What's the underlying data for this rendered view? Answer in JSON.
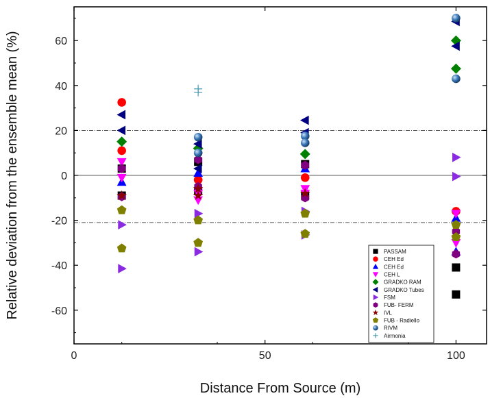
{
  "chart_data": {
    "type": "scatter",
    "title": "",
    "xlabel": "Distance From Source (m)",
    "ylabel": "Relative deviation from the ensemble mean (%)",
    "xlim": [
      0,
      108
    ],
    "ylim": [
      -75,
      75
    ],
    "xticks": [
      0,
      50,
      100
    ],
    "yticks": [
      -60,
      -40,
      -20,
      0,
      20,
      40,
      60
    ],
    "reference_lines": [
      {
        "y": 20,
        "style": "dash-dot"
      },
      {
        "y": 0,
        "style": "solid"
      },
      {
        "y": -21,
        "style": "dash-dot"
      }
    ],
    "legend_position": "bottom-right",
    "grid": false,
    "series": [
      {
        "name": "PASSAM",
        "marker": "square",
        "color": "#000000",
        "points": [
          [
            12.5,
            3
          ],
          [
            12.5,
            -9
          ],
          [
            32.5,
            6
          ],
          [
            32.5,
            -7
          ],
          [
            60.5,
            5
          ],
          [
            60.5,
            -9
          ],
          [
            100,
            -41
          ],
          [
            100,
            -53
          ]
        ]
      },
      {
        "name": "CEH Ed",
        "marker": "circle",
        "color": "#ff0000",
        "points": [
          [
            12.5,
            32.5
          ],
          [
            12.5,
            11
          ],
          [
            32.5,
            -2
          ],
          [
            60.5,
            -1
          ],
          [
            100,
            -16
          ]
        ]
      },
      {
        "name": "CEH Ed",
        "marker": "triangle-up",
        "color": "#0000ff",
        "points": [
          [
            12.5,
            -3
          ],
          [
            32.5,
            1
          ],
          [
            60.5,
            3
          ],
          [
            100,
            -19
          ],
          [
            100,
            -34
          ]
        ]
      },
      {
        "name": "CEH L",
        "marker": "triangle-down",
        "color": "#ff00ff",
        "points": [
          [
            12.5,
            6
          ],
          [
            12.5,
            -1
          ],
          [
            32.5,
            -8
          ],
          [
            32.5,
            -11
          ],
          [
            60.5,
            -6
          ],
          [
            60.5,
            -8
          ],
          [
            100,
            -17
          ],
          [
            100,
            -30
          ]
        ]
      },
      {
        "name": "GRADKO RAM",
        "marker": "diamond",
        "color": "#008000",
        "points": [
          [
            12.5,
            15
          ],
          [
            32.5,
            12
          ],
          [
            60.5,
            9.5
          ],
          [
            100,
            60
          ],
          [
            100,
            47.5
          ]
        ]
      },
      {
        "name": "GRADKO Tubes",
        "marker": "triangle-left",
        "color": "#000080",
        "points": [
          [
            12.5,
            27
          ],
          [
            12.5,
            20
          ],
          [
            32.5,
            14
          ],
          [
            32.5,
            3
          ],
          [
            60.5,
            24.5
          ],
          [
            60.5,
            19
          ],
          [
            100,
            68.5
          ],
          [
            100,
            57.5
          ]
        ]
      },
      {
        "name": "FSM",
        "marker": "triangle-right",
        "color": "#8a2be2",
        "points": [
          [
            12.5,
            -22
          ],
          [
            12.5,
            -41.5
          ],
          [
            32.5,
            -17
          ],
          [
            32.5,
            -34
          ],
          [
            60.5,
            -16
          ],
          [
            60.5,
            -26.5
          ],
          [
            100,
            8
          ],
          [
            100,
            -0.5
          ]
        ]
      },
      {
        "name": "FUB- FERM",
        "marker": "hexagon",
        "color": "#800080",
        "points": [
          [
            12.5,
            3
          ],
          [
            12.5,
            -9.5
          ],
          [
            32.5,
            7
          ],
          [
            32.5,
            -5
          ],
          [
            60.5,
            4.5
          ],
          [
            60.5,
            -10
          ],
          [
            100,
            -25
          ],
          [
            100,
            -35
          ]
        ]
      },
      {
        "name": "IVL",
        "marker": "star",
        "color": "#8b0000",
        "points": [
          [
            12.5,
            -9
          ],
          [
            32.5,
            -6
          ],
          [
            32.5,
            -9
          ],
          [
            60.5,
            -8
          ],
          [
            100,
            -22
          ]
        ]
      },
      {
        "name": "FUB - Radiello",
        "marker": "pentagon",
        "color": "#808000",
        "points": [
          [
            12.5,
            -15.5
          ],
          [
            12.5,
            -32.5
          ],
          [
            32.5,
            -20
          ],
          [
            32.5,
            -30
          ],
          [
            60.5,
            -17
          ],
          [
            60.5,
            -26
          ],
          [
            100,
            -22
          ],
          [
            100,
            -27.5
          ]
        ]
      },
      {
        "name": "RIVM",
        "marker": "sphere",
        "color": "#2e6faf",
        "points": [
          [
            32.5,
            17
          ],
          [
            32.5,
            10
          ],
          [
            60.5,
            17.5
          ],
          [
            60.5,
            14.5
          ],
          [
            100,
            70
          ],
          [
            100,
            43
          ]
        ]
      },
      {
        "name": "Airmonia",
        "marker": "plus",
        "color": "#4a9ab0",
        "points": [
          [
            32.5,
            38.5
          ],
          [
            32.5,
            37
          ]
        ]
      }
    ]
  }
}
